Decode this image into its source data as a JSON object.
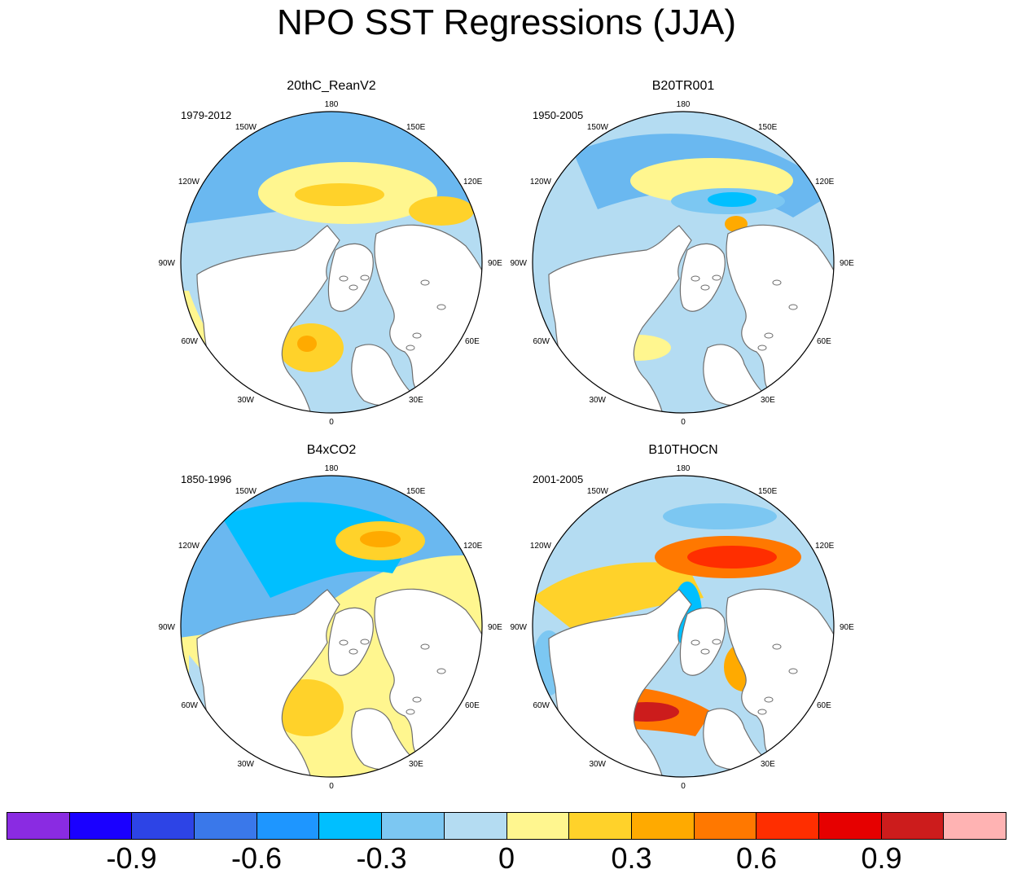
{
  "title": "NPO SST Regressions (JJA)",
  "panels": [
    {
      "title": "20thC_ReanV2",
      "years": "1979-2012"
    },
    {
      "title": "B20TR001",
      "years": "1950-2005"
    },
    {
      "title": "B4xCO2",
      "years": "1850-1996"
    },
    {
      "title": "B10THOCN",
      "years": "2001-2005"
    }
  ],
  "longitude_labels": {
    "top": "180",
    "upper_left": "150W",
    "upper_right": "150E",
    "left_upper": "120W",
    "right_upper": "120E",
    "left": "90W",
    "right": "90E",
    "left_lower": "60W",
    "right_lower": "60E",
    "lower_left": "30W",
    "lower_right": "30E",
    "bottom": "0"
  },
  "colorbar": {
    "colors": [
      "#8a2be2",
      "#1a00ff",
      "#2d44e6",
      "#3a78ea",
      "#1e96ff",
      "#00bfff",
      "#7cc7f2",
      "#b4dcf2",
      "#fff68f",
      "#ffd22a",
      "#ffaa00",
      "#ff7800",
      "#ff2e00",
      "#e60000",
      "#cc1c1c",
      "#ffb3b3"
    ],
    "labels": [
      "-0.9",
      "-0.6",
      "-0.3",
      "0",
      "0.3",
      "0.6",
      "0.9"
    ]
  },
  "palette": {
    "land": "#ffffff",
    "coast": "#6e6e6e",
    "light_blue": "#b4dcf2",
    "mid_blue": "#7cc7f2",
    "blue": "#6ab8f0",
    "cyan": "#00bfff",
    "yellow": "#fff68f",
    "gold": "#ffd22a",
    "orange": "#ffaa00",
    "dark_orange": "#ff7800",
    "red": "#ff2e00",
    "dark_red": "#cc1c1c"
  }
}
